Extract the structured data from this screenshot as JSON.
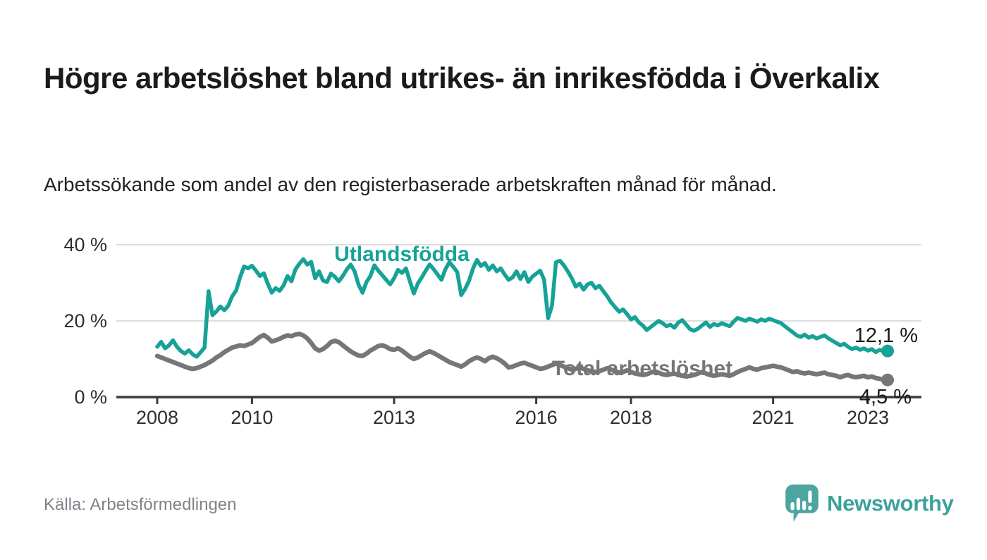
{
  "header": {
    "title": "Högre arbetslöshet bland utrikes- än inrikesfödda i Överkalix",
    "subtitle": "Arbetssökande som andel av den registerbaserade arbetskraften månad för månad."
  },
  "footer": {
    "source": "Källa: Arbetsförmedlingen",
    "brand": "Newsworthy",
    "brand_color": "#3ba29b"
  },
  "chart_data": {
    "type": "line",
    "title": "Högre arbetslöshet bland utrikes- än inrikesfödda i Överkalix",
    "xlabel": "",
    "ylabel": "",
    "x_start": "2008-01",
    "x_step": "month",
    "x_end": "2023-06",
    "ylim": [
      0,
      42
    ],
    "grid": "horizontal",
    "legend_position": "inline-labels",
    "axis_color": "#3c3c3c",
    "grid_color": "#dcdcdc",
    "y_ticks": [
      {
        "value": 0,
        "label": "0 %"
      },
      {
        "value": 20,
        "label": "20 %"
      },
      {
        "value": 40,
        "label": "40 %"
      }
    ],
    "x_ticks": [
      {
        "year": 2008,
        "label": "2008"
      },
      {
        "year": 2010,
        "label": "2010"
      },
      {
        "year": 2013,
        "label": "2013"
      },
      {
        "year": 2016,
        "label": "2016"
      },
      {
        "year": 2018,
        "label": "2018"
      },
      {
        "year": 2021,
        "label": "2021"
      },
      {
        "year": 2023,
        "label": "2023"
      }
    ],
    "series": [
      {
        "name": "Utlandsfödda",
        "color": "#16a296",
        "end_label": "12,1 %",
        "end_value": 12.1,
        "values": [
          13.2,
          14.5,
          12.8,
          13.6,
          14.9,
          13.2,
          12.1,
          11.4,
          12.3,
          11.2,
          10.6,
          11.8,
          13.0,
          27.8,
          21.5,
          22.5,
          23.8,
          22.8,
          24.0,
          26.5,
          28.0,
          31.5,
          34.3,
          33.8,
          34.5,
          33.2,
          31.8,
          32.5,
          29.8,
          27.4,
          28.6,
          27.9,
          29.3,
          31.8,
          30.4,
          33.5,
          35.0,
          36.2,
          34.8,
          35.5,
          31.2,
          33.0,
          30.6,
          30.2,
          32.4,
          31.6,
          30.4,
          31.8,
          33.5,
          34.8,
          33.0,
          29.5,
          27.4,
          30.2,
          31.8,
          34.6,
          33.2,
          32.0,
          30.8,
          29.6,
          31.2,
          33.4,
          32.6,
          33.8,
          30.4,
          27.2,
          29.8,
          31.4,
          33.2,
          34.8,
          33.6,
          32.2,
          30.8,
          33.6,
          35.4,
          34.2,
          32.8,
          26.8,
          28.4,
          30.6,
          33.8,
          36.0,
          34.4,
          35.2,
          33.4,
          34.6,
          33.0,
          33.8,
          32.2,
          30.8,
          31.4,
          33.0,
          31.0,
          32.8,
          30.2,
          31.6,
          32.4,
          33.2,
          30.8,
          20.7,
          24.0,
          35.4,
          35.8,
          34.6,
          33.0,
          31.2,
          29.0,
          29.8,
          28.2,
          29.6,
          30.0,
          28.6,
          29.2,
          27.8,
          26.4,
          24.8,
          23.6,
          22.4,
          23.0,
          21.8,
          20.4,
          21.0,
          19.6,
          18.8,
          17.6,
          18.4,
          19.2,
          20.0,
          19.4,
          18.6,
          19.0,
          18.2,
          19.6,
          20.2,
          19.0,
          17.8,
          17.4,
          18.0,
          18.8,
          19.6,
          18.4,
          19.2,
          18.8,
          19.4,
          19.0,
          18.6,
          19.8,
          20.8,
          20.4,
          20.0,
          20.6,
          20.2,
          19.8,
          20.4,
          20.0,
          20.6,
          20.2,
          19.8,
          19.4,
          18.6,
          17.8,
          17.0,
          16.2,
          15.8,
          16.4,
          15.6,
          16.0,
          15.4,
          15.8,
          16.2,
          15.4,
          14.8,
          14.2,
          13.6,
          14.0,
          13.2,
          12.6,
          13.0,
          12.4,
          12.8,
          12.2,
          12.6,
          11.8,
          12.4,
          12.0,
          12.1
        ]
      },
      {
        "name": "Total arbetslöshet",
        "color": "#767676",
        "end_label": "4,5 %",
        "end_value": 4.5,
        "values": [
          10.8,
          10.4,
          10.0,
          9.6,
          9.2,
          8.8,
          8.4,
          8.0,
          7.6,
          7.4,
          7.6,
          8.0,
          8.4,
          9.0,
          9.6,
          10.4,
          11.0,
          11.8,
          12.4,
          13.0,
          13.3,
          13.6,
          13.4,
          13.8,
          14.2,
          15.0,
          15.8,
          16.3,
          15.6,
          14.6,
          14.9,
          15.3,
          15.8,
          16.2,
          16.0,
          16.4,
          16.6,
          16.2,
          15.4,
          14.2,
          12.8,
          12.2,
          12.6,
          13.4,
          14.4,
          14.8,
          14.4,
          13.6,
          12.8,
          12.0,
          11.4,
          10.9,
          10.8,
          11.4,
          12.2,
          12.8,
          13.4,
          13.6,
          13.2,
          12.6,
          12.4,
          12.8,
          12.2,
          11.4,
          10.6,
          10.0,
          10.4,
          11.0,
          11.6,
          12.0,
          11.6,
          11.0,
          10.4,
          9.8,
          9.2,
          8.8,
          8.4,
          8.0,
          8.6,
          9.4,
          10.0,
          10.4,
          10.0,
          9.4,
          10.2,
          10.6,
          10.2,
          9.6,
          8.8,
          7.8,
          8.0,
          8.4,
          8.8,
          9.0,
          8.6,
          8.2,
          7.8,
          7.4,
          7.6,
          8.0,
          8.4,
          8.8,
          8.4,
          8.0,
          7.6,
          7.2,
          7.4,
          7.8,
          7.4,
          7.0,
          6.8,
          6.6,
          6.8,
          7.2,
          7.6,
          7.2,
          6.8,
          6.4,
          6.6,
          7.0,
          6.6,
          6.2,
          6.0,
          5.8,
          6.0,
          6.4,
          6.8,
          6.4,
          6.0,
          5.8,
          6.0,
          6.2,
          5.8,
          5.6,
          5.4,
          5.6,
          5.8,
          6.2,
          6.6,
          6.2,
          5.8,
          5.6,
          5.8,
          6.0,
          5.8,
          5.6,
          6.0,
          6.6,
          7.0,
          7.4,
          7.8,
          7.4,
          7.2,
          7.6,
          7.8,
          8.0,
          8.2,
          8.0,
          7.8,
          7.4,
          7.0,
          6.6,
          6.8,
          6.4,
          6.2,
          6.4,
          6.2,
          6.0,
          6.2,
          6.4,
          6.0,
          5.8,
          5.6,
          5.2,
          5.6,
          5.8,
          5.4,
          5.2,
          5.4,
          5.6,
          5.2,
          5.4,
          5.0,
          4.8,
          4.6,
          4.5
        ]
      }
    ]
  }
}
